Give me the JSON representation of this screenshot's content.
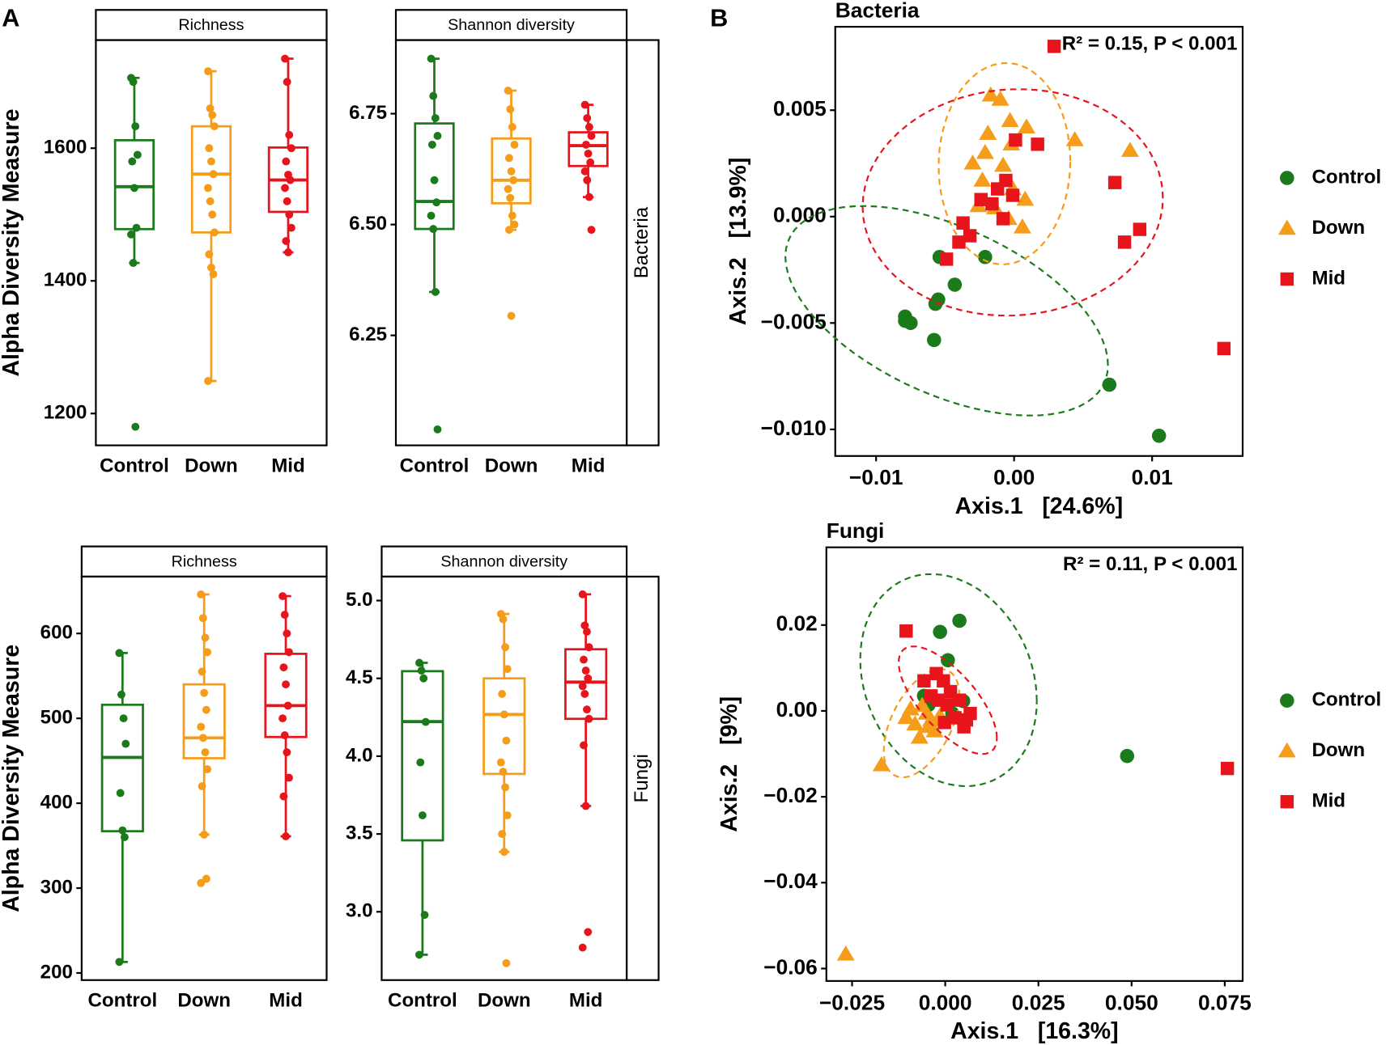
{
  "panel_labels": [
    "A",
    "B"
  ],
  "chart_data": [
    {
      "type": "box",
      "strip_top": "Richness",
      "ylabel": "Alpha Diversity Measure",
      "categories": [
        "Control",
        "Down",
        "Mid"
      ],
      "ylim": [
        1152,
        1763
      ],
      "yticks": [
        1200,
        1400,
        1600
      ],
      "series": [
        {
          "name": "Control",
          "color": "#1b7a1b",
          "min": 1427,
          "q1": 1478,
          "median": 1542,
          "q3": 1612,
          "max": 1706,
          "points": [
            1706,
            1700,
            1633,
            1590,
            1580,
            1540,
            1480,
            1470,
            1427,
            1180
          ]
        },
        {
          "name": "Down",
          "color": "#f59c1a",
          "min": 1249,
          "q1": 1473,
          "median": 1561,
          "q3": 1633,
          "max": 1716,
          "points": [
            1716,
            1660,
            1650,
            1633,
            1600,
            1580,
            1561,
            1540,
            1520,
            1500,
            1473,
            1440,
            1420,
            1410,
            1249
          ]
        },
        {
          "name": "Mid",
          "color": "#e8141c",
          "min": 1443,
          "q1": 1504,
          "median": 1552,
          "q3": 1601,
          "max": 1735,
          "points": [
            1735,
            1700,
            1620,
            1600,
            1580,
            1560,
            1552,
            1540,
            1520,
            1500,
            1480,
            1460,
            1443
          ]
        }
      ]
    },
    {
      "type": "box",
      "strip_top": "Shannon diversity",
      "strip_side": "Bacteria",
      "categories": [
        "Control",
        "Down",
        "Mid"
      ],
      "ylim": [
        6.002,
        6.916
      ],
      "yticks": [
        6.25,
        {
          "value": 6.5,
          "label": "6.50"
        },
        6.75
      ],
      "series": [
        {
          "name": "Control",
          "color": "#1b7a1b",
          "min": 6.348,
          "q1": 6.49,
          "median": 6.552,
          "q3": 6.728,
          "max": 6.874,
          "points": [
            6.874,
            6.79,
            6.74,
            6.7,
            6.68,
            6.6,
            6.55,
            6.52,
            6.49,
            6.348,
            6.038
          ]
        },
        {
          "name": "Down",
          "color": "#f59c1a",
          "min": 6.488,
          "q1": 6.548,
          "median": 6.6,
          "q3": 6.694,
          "max": 6.802,
          "points": [
            6.802,
            6.76,
            6.72,
            6.68,
            6.65,
            6.62,
            6.6,
            6.58,
            6.56,
            6.52,
            6.5,
            6.488,
            6.294
          ]
        },
        {
          "name": "Mid",
          "color": "#e8141c",
          "min": 6.562,
          "q1": 6.632,
          "median": 6.678,
          "q3": 6.708,
          "max": 6.77,
          "points": [
            6.77,
            6.74,
            6.72,
            6.7,
            6.68,
            6.66,
            6.64,
            6.62,
            6.6,
            6.562,
            6.488
          ]
        }
      ]
    },
    {
      "type": "box",
      "strip_top": "Richness",
      "ylabel": "Alpha Diversity Measure",
      "categories": [
        "Control",
        "Down",
        "Mid"
      ],
      "ylim": [
        191.6,
        667
      ],
      "yticks": [
        200,
        300,
        400,
        500,
        600
      ],
      "series": [
        {
          "name": "Control",
          "color": "#1b7a1b",
          "min": 213,
          "q1": 367,
          "median": 454,
          "q3": 516,
          "max": 577,
          "points": [
            577,
            528,
            500,
            470,
            412,
            368,
            360,
            213
          ]
        },
        {
          "name": "Down",
          "color": "#f59c1a",
          "min": 363,
          "q1": 453,
          "median": 477,
          "q3": 540,
          "max": 646,
          "points": [
            646,
            618,
            595,
            578,
            555,
            530,
            510,
            490,
            477,
            460,
            440,
            420,
            363,
            311,
            306
          ]
        },
        {
          "name": "Mid",
          "color": "#e8141c",
          "min": 361,
          "q1": 478,
          "median": 515,
          "q3": 576,
          "max": 644,
          "points": [
            644,
            622,
            600,
            578,
            560,
            540,
            515,
            500,
            480,
            460,
            430,
            408,
            361
          ]
        }
      ]
    },
    {
      "type": "box",
      "strip_top": "Shannon diversity",
      "strip_side": "Fungi",
      "categories": [
        "Control",
        "Down",
        "Mid"
      ],
      "ylim": [
        2.561,
        5.154
      ],
      "yticks": [
        {
          "value": 3,
          "label": "3.0"
        },
        3.5,
        {
          "value": 4,
          "label": "4.0"
        },
        4.5,
        {
          "value": 5,
          "label": "5.0"
        }
      ],
      "series": [
        {
          "name": "Control",
          "color": "#1b7a1b",
          "min": 2.724,
          "q1": 3.459,
          "median": 4.222,
          "q3": 4.546,
          "max": 4.6,
          "points": [
            4.6,
            4.55,
            4.5,
            4.22,
            3.96,
            3.62,
            2.98,
            2.724
          ]
        },
        {
          "name": "Down",
          "color": "#f59c1a",
          "min": 3.385,
          "q1": 3.886,
          "median": 4.268,
          "q3": 4.5,
          "max": 4.914,
          "points": [
            4.914,
            4.88,
            4.7,
            4.56,
            4.4,
            4.268,
            4.1,
            3.96,
            3.9,
            3.8,
            3.62,
            3.5,
            3.385,
            2.67
          ]
        },
        {
          "name": "Mid",
          "color": "#e8141c",
          "min": 3.68,
          "q1": 4.24,
          "median": 4.476,
          "q3": 4.687,
          "max": 5.04,
          "points": [
            5.04,
            4.84,
            4.8,
            4.7,
            4.62,
            4.55,
            4.5,
            4.45,
            4.4,
            4.3,
            4.24,
            4.07,
            3.68,
            2.87,
            2.77
          ]
        }
      ]
    },
    {
      "type": "scatter",
      "title": "Bacteria",
      "annotation": "R² = 0.15, P < 0.001",
      "xlabel": "Axis.1   [24.6%]",
      "ylabel": "Axis.2   [13.9%]",
      "xlim": [
        -0.01296,
        0.01656
      ],
      "xticks": [
        {
          "value": -0.01,
          "label": "−0.01"
        },
        {
          "value": 0,
          "label": "0.00"
        },
        0.01
      ],
      "ylim": [
        -0.01125,
        0.00892
      ],
      "yticks": [
        {
          "value": -0.01,
          "label": "−0.010"
        },
        {
          "value": -0.005,
          "label": "−0.005"
        },
        {
          "value": 0,
          "label": "0.000"
        },
        0.005
      ],
      "series": [
        {
          "name": "Control",
          "color": "#1b7a1b",
          "marker": "circle",
          "x": [
            -0.0054,
            -0.0021,
            -0.0043,
            -0.0055,
            -0.0057,
            -0.0079,
            -0.0079,
            -0.0075,
            -0.0058,
            0.0069,
            0.0105
          ],
          "y": [
            -0.0019,
            -0.0019,
            -0.0032,
            -0.0039,
            -0.0041,
            -0.0047,
            -0.0049,
            -0.005,
            -0.0058,
            -0.0079,
            -0.0103
          ]
        },
        {
          "name": "Down",
          "color": "#f59c1a",
          "marker": "triangle",
          "x": [
            -0.0017,
            -0.001,
            -0.0003,
            0.0009,
            -0.0019,
            -0.0002,
            -0.003,
            -0.0021,
            -0.0008,
            -0.0023,
            -0.0001,
            -0.0026,
            -0.0014,
            -0.0004,
            0.0008,
            0.0006,
            0.0044,
            0.0084
          ],
          "y": [
            0.0057,
            0.0055,
            0.0045,
            0.0042,
            0.0039,
            0.0034,
            0.0025,
            0.003,
            0.0024,
            0.0017,
            0.0013,
            0.0005,
            0.0004,
            -0.0001,
            0.0008,
            -0.0005,
            0.0036,
            0.0031
          ]
        },
        {
          "name": "Mid",
          "color": "#e8141c",
          "marker": "square",
          "x": [
            0.0029,
            0.0001,
            0.0017,
            0.0073,
            -0.0012,
            -0.0006,
            -0.0024,
            -0.0001,
            -0.0016,
            -0.0037,
            -0.0008,
            -0.0032,
            -0.004,
            -0.0049,
            0.0091,
            0.008,
            0.0152
          ],
          "y": [
            0.008,
            0.0036,
            0.0034,
            0.0016,
            0.0013,
            0.0017,
            0.0008,
            0.001,
            0.0006,
            -0.0003,
            -0.0001,
            -0.0009,
            -0.0012,
            -0.002,
            -0.0006,
            -0.0012,
            -0.0062
          ]
        }
      ]
    },
    {
      "type": "scatter",
      "title": "Fungi",
      "annotation": "R² = 0.11, P < 0.001",
      "xlabel": "Axis.1   [16.3%]",
      "ylabel": "Axis.2   [9%]",
      "xlim": [
        -0.0319,
        0.0798
      ],
      "xticks": [
        {
          "value": -0.025,
          "label": "−0.025"
        },
        {
          "value": 0,
          "label": "0.000"
        },
        0.025,
        {
          "value": 0.05,
          "label": "0.050"
        },
        0.075
      ],
      "ylim": [
        -0.0629,
        0.0381
      ],
      "yticks": [
        {
          "value": -0.06,
          "label": "−0.06"
        },
        {
          "value": -0.04,
          "label": "−0.04"
        },
        {
          "value": -0.02,
          "label": "−0.02"
        },
        {
          "value": 0,
          "label": "0.00"
        },
        0.02
      ],
      "series": [
        {
          "name": "Control",
          "color": "#1b7a1b",
          "marker": "circle",
          "x": [
            0.0038,
            -0.0014,
            0.0007,
            0.0048,
            0.0488,
            -0.0045,
            0.0019,
            -0.0057
          ],
          "y": [
            0.021,
            0.0184,
            0.0118,
            0.0023,
            -0.0105,
            0.0014,
            -0.0006,
            0.0035
          ]
        },
        {
          "name": "Down",
          "color": "#f59c1a",
          "marker": "triangle",
          "x": [
            -0.0267,
            -0.0171,
            -0.0093,
            -0.0081,
            -0.0069,
            -0.005,
            -0.0029,
            -0.0062,
            -0.0038,
            -0.0014,
            -0.0105,
            -0.0045
          ],
          "y": [
            -0.0567,
            -0.0126,
            0.0004,
            -0.0031,
            -0.0062,
            -0.0006,
            -0.0047,
            0.0012,
            -0.0021,
            -0.0012,
            -0.0016,
            -0.0037
          ]
        },
        {
          "name": "Mid",
          "color": "#e8141c",
          "marker": "square",
          "x": [
            -0.0105,
            0.0757,
            -0.0057,
            -0.0024,
            -0.0005,
            -0.0019,
            0.0005,
            0.0026,
            0.005,
            0.0067,
            0.0038,
            0.0014,
            -0.0002,
            0.0057,
            -0.0038
          ],
          "y": [
            0.0186,
            -0.0134,
            0.007,
            0.0087,
            0.007,
            0.0025,
            0.0014,
            -0.0016,
            -0.0037,
            -0.0006,
            0.0025,
            0.0045,
            -0.0027,
            -0.0021,
            0.0035
          ]
        }
      ]
    }
  ]
}
